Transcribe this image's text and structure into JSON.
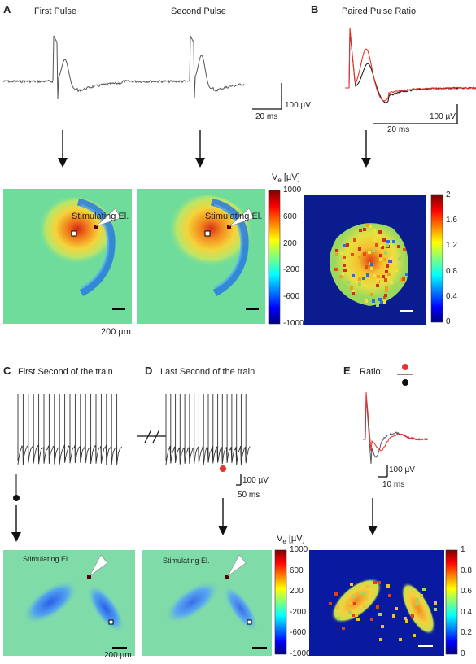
{
  "panels": {
    "A": {
      "letter": "A",
      "title_left": "First Pulse",
      "title_right": "Second Pulse",
      "scalebar_v": "100 µV",
      "scalebar_h": "20 ms",
      "stim_label": "Stimulating El.",
      "space_scale": "200 µm",
      "cbar_title": "Ve [µV]",
      "cbar_title_main": "V",
      "cbar_title_sub": "e",
      "cbar_title_unit": " [µV]",
      "cbar_ticks": [
        "1000",
        "600",
        "200",
        "-200",
        "-600",
        "-1000"
      ]
    },
    "B": {
      "letter": "B",
      "title": "Paired Pulse Ratio",
      "scalebar_v": "100 µV",
      "scalebar_h": "20 ms",
      "cbar_ticks": [
        "2",
        "1.6",
        "1.2",
        "0.8",
        "0.4",
        "0"
      ]
    },
    "C": {
      "letter": "C",
      "title": "First Second of the train",
      "stim_label": "Stimulating El.",
      "space_scale": "200 µm"
    },
    "D": {
      "letter": "D",
      "title": "Last Second of the train",
      "scalebar_v": "100 µV",
      "scalebar_h": "50 ms",
      "stim_label": "Stimulating El.",
      "cbar_title_main": "V",
      "cbar_title_sub": "e",
      "cbar_title_unit": " [µV]",
      "cbar_ticks": [
        "1000",
        "600",
        "200",
        "-200",
        "-600",
        "-1000"
      ]
    },
    "E": {
      "letter": "E",
      "ratio_label": "Ratio:",
      "scalebar_v": "100 µV",
      "scalebar_h": "10 ms",
      "cbar_ticks": [
        "1",
        "0.8",
        "0.6",
        "0.4",
        "0.2",
        "0"
      ]
    }
  },
  "colors": {
    "trace": "#555555",
    "trace_black": "#111111",
    "trace_red": "#e8322c",
    "marker_red": "#e8322c",
    "background_map_A": "#6fdc9c",
    "background_map_B": "#0b1d8e",
    "background_map_C": "#7fdca8",
    "background_map_E": "#0a1aa0"
  }
}
